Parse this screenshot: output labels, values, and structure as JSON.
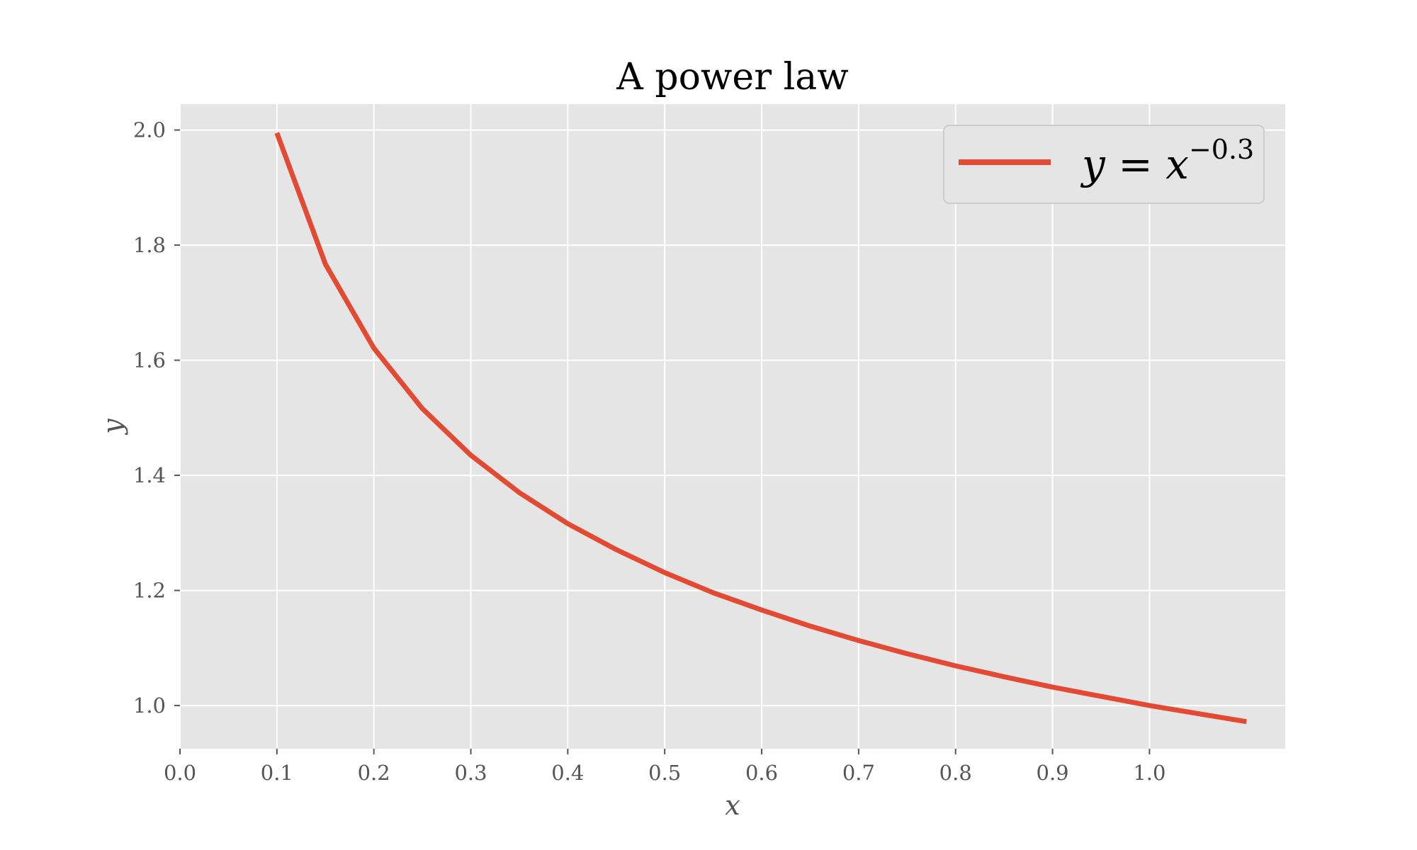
{
  "chart_data": {
    "type": "line",
    "title": "A power law",
    "xlabel": "x",
    "ylabel": "y",
    "xlim": [
      0.0,
      1.14
    ],
    "ylim": [
      0.925,
      2.045
    ],
    "xticks": [
      0.0,
      0.1,
      0.2,
      0.3,
      0.4,
      0.5,
      0.6,
      0.7,
      0.8,
      0.9,
      1.0
    ],
    "xtick_labels": [
      "0.0",
      "0.1",
      "0.2",
      "0.3",
      "0.4",
      "0.5",
      "0.6",
      "0.7",
      "0.8",
      "0.9",
      "1.0"
    ],
    "yticks": [
      1.0,
      1.2,
      1.4,
      1.6,
      1.8,
      2.0
    ],
    "ytick_labels": [
      "1.0",
      "1.2",
      "1.4",
      "1.6",
      "1.8",
      "2.0"
    ],
    "grid": true,
    "legend_position": "top-right",
    "series": [
      {
        "name": "y = x^{-0.3}",
        "legend_base": "y = x",
        "legend_exponent": "−0.3",
        "color": "#E24A33",
        "x": [
          0.1,
          0.15,
          0.2,
          0.25,
          0.3,
          0.35,
          0.4,
          0.45,
          0.5,
          0.55,
          0.6,
          0.65,
          0.7,
          0.75,
          0.8,
          0.85,
          0.9,
          0.95,
          1.0,
          1.05,
          1.1
        ],
        "y": [
          1.995,
          1.767,
          1.621,
          1.516,
          1.435,
          1.37,
          1.316,
          1.271,
          1.231,
          1.196,
          1.166,
          1.138,
          1.113,
          1.09,
          1.069,
          1.05,
          1.032,
          1.016,
          1.0,
          0.986,
          0.972
        ]
      }
    ]
  },
  "style": {
    "plot_background": "#E5E5E5",
    "grid_color": "#FFFFFF",
    "tick_color": "#555555"
  }
}
